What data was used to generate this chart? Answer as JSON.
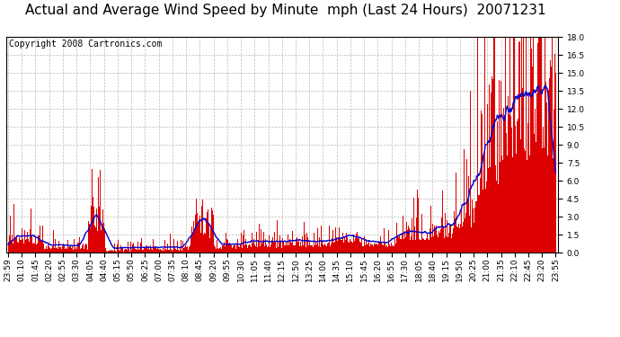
{
  "title": "Actual and Average Wind Speed by Minute  mph (Last 24 Hours)  20071231",
  "copyright": "Copyright 2008 Cartronics.com",
  "ylim": [
    0.0,
    18.0
  ],
  "yticks": [
    0.0,
    1.5,
    3.0,
    4.5,
    6.0,
    7.5,
    9.0,
    10.5,
    12.0,
    13.5,
    15.0,
    16.5,
    18.0
  ],
  "bar_color": "#dd0000",
  "avg_color": "#0000cc",
  "bg_color": "#ffffff",
  "grid_color": "#bbbbbb",
  "title_fontsize": 11,
  "copyright_fontsize": 7,
  "tick_fontsize": 6.5,
  "x_labels": [
    "23:59",
    "01:10",
    "01:45",
    "02:20",
    "02:55",
    "03:30",
    "04:05",
    "04:40",
    "05:15",
    "05:50",
    "06:25",
    "07:00",
    "07:35",
    "08:10",
    "08:45",
    "09:20",
    "09:55",
    "10:30",
    "11:05",
    "11:40",
    "12:15",
    "12:50",
    "13:25",
    "14:00",
    "14:35",
    "15:10",
    "15:45",
    "16:20",
    "16:55",
    "17:30",
    "18:05",
    "18:40",
    "19:15",
    "19:50",
    "20:25",
    "21:00",
    "21:35",
    "22:10",
    "22:45",
    "23:20",
    "23:55"
  ]
}
